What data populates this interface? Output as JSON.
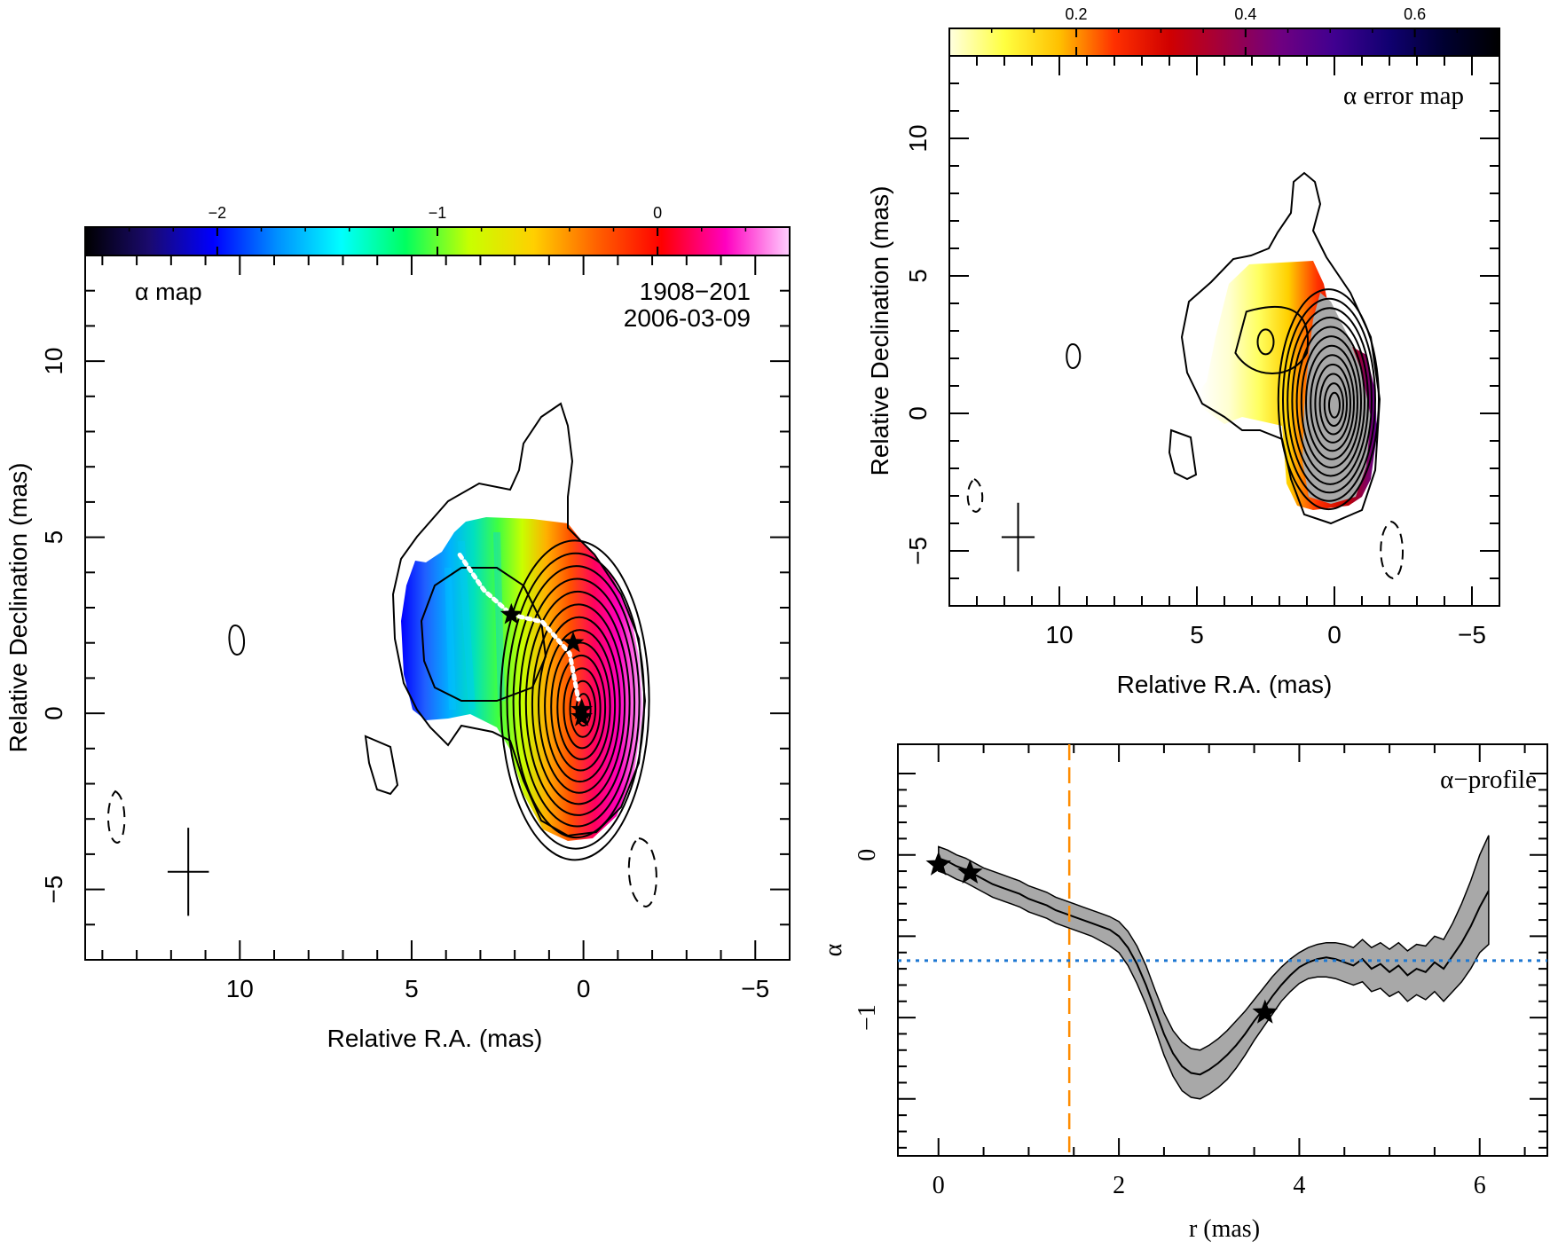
{
  "chart_data": [
    {
      "type": "heatmap",
      "panel": "alpha-map",
      "title": "α map",
      "source": "1908−201",
      "date": "2006-03-09",
      "xlabel": "Relative R.A. (mas)",
      "ylabel": "Relative Declination (mas)",
      "xlim": [
        14.5,
        -6
      ],
      "ylim": [
        -7,
        13
      ],
      "xticks": [
        10,
        5,
        0,
        -5
      ],
      "xtick_labels": [
        "10",
        "5",
        "0",
        "−5"
      ],
      "yticks": [
        -5,
        0,
        5,
        10
      ],
      "ytick_labels": [
        "−5",
        "0",
        "5",
        "10"
      ],
      "colorbar": {
        "range": [
          -2.6,
          0.6
        ],
        "ticks": [
          -2,
          -1,
          0
        ],
        "tick_labels": [
          "−2",
          "−1",
          "0"
        ],
        "colors": [
          "#000000",
          "#1a0a6e",
          "#0000ff",
          "#0090ff",
          "#00ffff",
          "#00ff60",
          "#c8ff00",
          "#ffd000",
          "#ff6000",
          "#ff0000",
          "#ff00c0",
          "#ffd0ff"
        ]
      },
      "ridge_points": [
        [
          3.6,
          4.5
        ],
        [
          2.9,
          3.5
        ],
        [
          2.1,
          2.8
        ],
        [
          1.2,
          2.6
        ],
        [
          0.4,
          1.7
        ],
        [
          0.15,
          0.4
        ]
      ],
      "stars": [
        [
          2.1,
          2.8
        ],
        [
          0.3,
          2.0
        ],
        [
          0.05,
          0.1
        ],
        [
          0.05,
          -0.1
        ]
      ],
      "beam": {
        "x": 11.5,
        "y": -4.5,
        "major": 2.5,
        "minor": 1.2
      }
    },
    {
      "type": "heatmap",
      "panel": "alpha-error-map",
      "title": "α error map",
      "xlabel": "Relative R.A. (mas)",
      "ylabel": "Relative Declination (mas)",
      "xlim": [
        14,
        -6
      ],
      "ylim": [
        -7,
        13
      ],
      "xticks": [
        10,
        5,
        0,
        -5
      ],
      "xtick_labels": [
        "10",
        "5",
        "0",
        "−5"
      ],
      "yticks": [
        -5,
        0,
        5,
        10
      ],
      "ytick_labels": [
        "−5",
        "0",
        "5",
        "10"
      ],
      "colorbar": {
        "range": [
          0.05,
          0.7
        ],
        "ticks": [
          0.2,
          0.4,
          0.6
        ],
        "tick_labels": [
          "0.2",
          "0.4",
          "0.6"
        ],
        "colors": [
          "#ffffe0",
          "#ffff40",
          "#ffc000",
          "#ff3000",
          "#d00000",
          "#a00040",
          "#700080",
          "#400090",
          "#100070",
          "#000030",
          "#000000"
        ]
      },
      "beam": {
        "x": 11.5,
        "y": -4.5,
        "major": 2.5,
        "minor": 1.2
      }
    },
    {
      "type": "line",
      "panel": "alpha-profile",
      "title": "α−profile",
      "xlabel": "r (mas)",
      "ylabel": "α",
      "xlim": [
        -0.45,
        6.75
      ],
      "ylim": [
        -1.85,
        0.68
      ],
      "xticks": [
        0,
        2,
        4,
        6
      ],
      "xtick_labels": [
        "0",
        "2",
        "4",
        "6"
      ],
      "yticks": [
        0,
        -1
      ],
      "ytick_labels": [
        "0",
        "−1"
      ],
      "x": [
        0.0,
        0.1,
        0.2,
        0.3,
        0.4,
        0.5,
        0.6,
        0.7,
        0.8,
        0.9,
        1.0,
        1.1,
        1.2,
        1.3,
        1.4,
        1.5,
        1.6,
        1.7,
        1.8,
        1.9,
        2.0,
        2.1,
        2.2,
        2.3,
        2.4,
        2.5,
        2.6,
        2.7,
        2.8,
        2.9,
        3.0,
        3.1,
        3.2,
        3.3,
        3.4,
        3.5,
        3.6,
        3.7,
        3.8,
        3.9,
        4.0,
        4.1,
        4.2,
        4.3,
        4.4,
        4.5,
        4.6,
        4.7,
        4.8,
        4.9,
        5.0,
        5.1,
        5.2,
        5.3,
        5.4,
        5.5,
        5.6,
        5.7,
        5.8,
        5.9,
        6.0,
        6.1
      ],
      "series": [
        {
          "values": [
            -0.02,
            -0.04,
            -0.07,
            -0.09,
            -0.12,
            -0.15,
            -0.18,
            -0.2,
            -0.22,
            -0.24,
            -0.27,
            -0.29,
            -0.31,
            -0.34,
            -0.36,
            -0.38,
            -0.4,
            -0.42,
            -0.44,
            -0.46,
            -0.5,
            -0.57,
            -0.67,
            -0.8,
            -0.95,
            -1.1,
            -1.22,
            -1.3,
            -1.34,
            -1.35,
            -1.32,
            -1.28,
            -1.23,
            -1.17,
            -1.1,
            -1.02,
            -0.95,
            -0.87,
            -0.8,
            -0.74,
            -0.69,
            -0.66,
            -0.64,
            -0.63,
            -0.64,
            -0.66,
            -0.68,
            -0.64,
            -0.7,
            -0.67,
            -0.72,
            -0.68,
            -0.74,
            -0.7,
            -0.72,
            -0.66,
            -0.7,
            -0.62,
            -0.54,
            -0.44,
            -0.32,
            -0.22
          ],
          "lower": [
            -0.1,
            -0.12,
            -0.15,
            -0.17,
            -0.2,
            -0.23,
            -0.26,
            -0.28,
            -0.3,
            -0.32,
            -0.35,
            -0.37,
            -0.39,
            -0.42,
            -0.44,
            -0.46,
            -0.48,
            -0.5,
            -0.53,
            -0.56,
            -0.6,
            -0.68,
            -0.79,
            -0.92,
            -1.07,
            -1.23,
            -1.36,
            -1.45,
            -1.49,
            -1.5,
            -1.47,
            -1.43,
            -1.38,
            -1.31,
            -1.23,
            -1.14,
            -1.06,
            -0.98,
            -0.9,
            -0.84,
            -0.79,
            -0.76,
            -0.75,
            -0.75,
            -0.76,
            -0.78,
            -0.8,
            -0.78,
            -0.84,
            -0.82,
            -0.87,
            -0.84,
            -0.9,
            -0.86,
            -0.89,
            -0.84,
            -0.9,
            -0.84,
            -0.78,
            -0.7,
            -0.6,
            -0.55
          ],
          "upper": [
            0.05,
            0.03,
            0.0,
            -0.02,
            -0.05,
            -0.08,
            -0.1,
            -0.12,
            -0.14,
            -0.16,
            -0.19,
            -0.21,
            -0.23,
            -0.26,
            -0.28,
            -0.3,
            -0.32,
            -0.34,
            -0.36,
            -0.38,
            -0.41,
            -0.47,
            -0.56,
            -0.68,
            -0.83,
            -0.97,
            -1.08,
            -1.15,
            -1.19,
            -1.2,
            -1.17,
            -1.13,
            -1.08,
            -1.02,
            -0.96,
            -0.89,
            -0.82,
            -0.75,
            -0.69,
            -0.64,
            -0.6,
            -0.57,
            -0.55,
            -0.54,
            -0.54,
            -0.55,
            -0.57,
            -0.52,
            -0.57,
            -0.54,
            -0.58,
            -0.54,
            -0.59,
            -0.55,
            -0.56,
            -0.5,
            -0.52,
            -0.42,
            -0.3,
            -0.16,
            0.0,
            0.12
          ]
        }
      ],
      "stars": [
        [
          0.0,
          -0.06
        ],
        [
          0.35,
          -0.11
        ],
        [
          3.62,
          -0.97
        ]
      ],
      "reference_lines": {
        "vertical_dashed_x": 1.45,
        "horizontal_dotted_y": -0.65
      },
      "colors": {
        "band": "#a8a8a8",
        "vertical_line": "#ff8c00",
        "horizontal_line": "#1e78d2"
      }
    }
  ]
}
